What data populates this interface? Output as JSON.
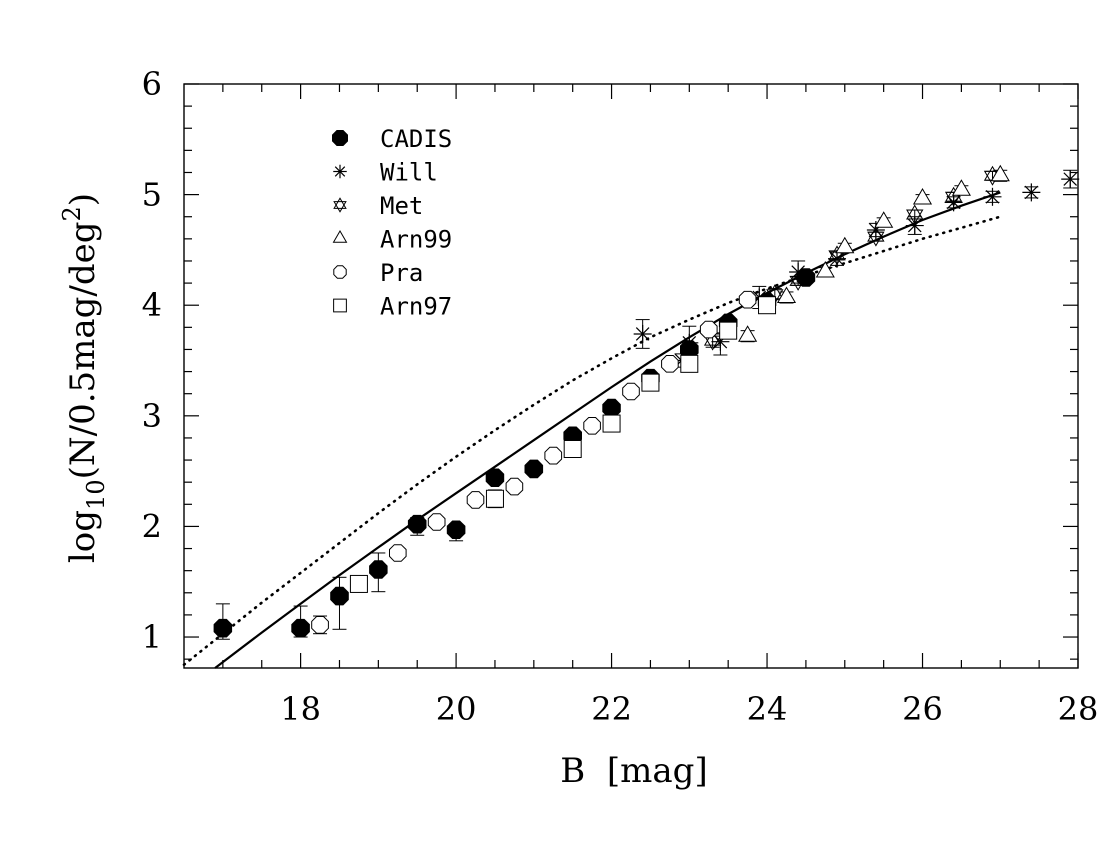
{
  "chart_data": {
    "type": "scatter",
    "xlabel": "B  [mag]",
    "ylabel_main": "log",
    "ylabel_sub": "10",
    "ylabel_rest": "(N/0.5mag/deg",
    "ylabel_sup": "2",
    "ylabel_end": ")",
    "xlim": [
      16.5,
      28
    ],
    "ylim": [
      0.72,
      6
    ],
    "xticks": [
      18,
      20,
      22,
      24,
      26,
      28
    ],
    "xtick_labels": [
      "18",
      "20",
      "22",
      "24",
      "26",
      "28"
    ],
    "yticks": [
      1,
      2,
      3,
      4,
      5,
      6
    ],
    "ytick_labels": [
      "1",
      "2",
      "3",
      "4",
      "5",
      "6"
    ],
    "legend_position": "top-left",
    "series": [
      {
        "name": "CADIS",
        "marker": "filled-octagon",
        "points": [
          [
            17.0,
            1.08,
            0.22,
            0.1
          ],
          [
            18.0,
            1.08,
            0.2,
            0.08
          ],
          [
            18.5,
            1.37,
            0.17,
            0.3
          ],
          [
            19.0,
            1.61,
            0.15,
            0.2
          ],
          [
            19.5,
            2.02,
            0.06,
            0.1
          ],
          [
            20.0,
            1.97,
            0.05,
            0.1
          ],
          [
            20.5,
            2.44,
            0.05,
            0.05
          ],
          [
            21.0,
            2.52,
            0.04,
            0.04
          ],
          [
            21.5,
            2.82,
            0.04,
            0.04
          ],
          [
            22.0,
            3.07,
            0.03,
            0.03
          ],
          [
            22.5,
            3.34,
            0.03,
            0.03
          ],
          [
            23.0,
            3.6,
            0.03,
            0.03
          ],
          [
            23.5,
            3.84,
            0.03,
            0.03
          ],
          [
            24.0,
            4.03,
            0.03,
            0.03
          ],
          [
            24.5,
            4.25,
            0.03,
            0.03
          ]
        ]
      },
      {
        "name": "Will",
        "marker": "asterisk",
        "points": [
          [
            22.4,
            3.74,
            0.13,
            0.13
          ],
          [
            22.9,
            3.5,
            0.06,
            0.06
          ],
          [
            23.0,
            3.66,
            0.15,
            0.1
          ],
          [
            23.4,
            3.67,
            0.08,
            0.12
          ],
          [
            23.9,
            4.07,
            0.1,
            0.1
          ],
          [
            24.4,
            4.3,
            0.1,
            0.1
          ],
          [
            24.9,
            4.42,
            0.06,
            0.06
          ],
          [
            25.4,
            4.68,
            0.06,
            0.06
          ],
          [
            25.9,
            4.72,
            0.08,
            0.08
          ],
          [
            26.4,
            4.93,
            0.05,
            0.05
          ],
          [
            26.9,
            4.98,
            0.05,
            0.05
          ],
          [
            27.4,
            5.02,
            0.05,
            0.05
          ],
          [
            27.9,
            5.14,
            0.08,
            0.08
          ]
        ]
      },
      {
        "name": "Met",
        "marker": "star-of-david",
        "points": [
          [
            23.3,
            3.68,
            0.06,
            0.06
          ],
          [
            24.1,
            4.1,
            0.05,
            0.05
          ],
          [
            24.4,
            4.22,
            0.04,
            0.04
          ],
          [
            24.9,
            4.45,
            0.04,
            0.04
          ],
          [
            25.4,
            4.62,
            0.04,
            0.04
          ],
          [
            25.9,
            4.82,
            0.04,
            0.04
          ],
          [
            26.4,
            4.98,
            0.04,
            0.04
          ],
          [
            26.9,
            5.17,
            0.04,
            0.04
          ]
        ]
      },
      {
        "name": "Arn99",
        "marker": "triangle",
        "points": [
          [
            23.75,
            3.72,
            0.05,
            0.05
          ],
          [
            24.25,
            4.07,
            0.05,
            0.05
          ],
          [
            24.75,
            4.3,
            0.04,
            0.04
          ],
          [
            25.0,
            4.52,
            0.04,
            0.04
          ],
          [
            25.5,
            4.75,
            0.04,
            0.04
          ],
          [
            26.0,
            4.96,
            0.04,
            0.04
          ],
          [
            26.5,
            5.04,
            0.04,
            0.04
          ],
          [
            27.0,
            5.17,
            0.05,
            0.05
          ]
        ]
      },
      {
        "name": "Pra",
        "marker": "open-octagon",
        "points": [
          [
            18.25,
            1.11,
            0.08,
            0.08
          ],
          [
            19.25,
            1.76,
            0.04,
            0.04
          ],
          [
            19.75,
            2.04,
            0.03,
            0.03
          ],
          [
            20.25,
            2.24,
            0.03,
            0.03
          ],
          [
            20.75,
            2.36,
            0.03,
            0.03
          ],
          [
            21.25,
            2.64,
            0.03,
            0.03
          ],
          [
            21.75,
            2.91,
            0.03,
            0.03
          ],
          [
            22.25,
            3.22,
            0.03,
            0.03
          ],
          [
            22.75,
            3.47,
            0.03,
            0.03
          ],
          [
            23.25,
            3.78,
            0.03,
            0.03
          ],
          [
            23.75,
            4.05,
            0.03,
            0.03
          ]
        ]
      },
      {
        "name": "Arn97",
        "marker": "square",
        "points": [
          [
            18.75,
            1.48,
            0.07,
            0.07
          ],
          [
            20.5,
            2.25,
            0.08,
            0.08
          ],
          [
            21.5,
            2.7,
            0.05,
            0.05
          ],
          [
            22.0,
            2.93,
            0.05,
            0.05
          ],
          [
            22.5,
            3.3,
            0.04,
            0.04
          ],
          [
            23.0,
            3.47,
            0.05,
            0.05
          ],
          [
            23.5,
            3.77,
            0.04,
            0.04
          ],
          [
            24.0,
            4.0,
            0.06,
            0.06
          ]
        ]
      }
    ],
    "curves": [
      {
        "style": "solid",
        "x": [
          16.9,
          17.5,
          18.0,
          18.5,
          19.0,
          19.5,
          20.0,
          20.5,
          21.0,
          21.5,
          22.0,
          22.5,
          23.0,
          23.5,
          24.0,
          24.5,
          25.0,
          25.5,
          26.0,
          26.5,
          27.0
        ],
        "y": [
          0.72,
          1.04,
          1.3,
          1.56,
          1.81,
          2.06,
          2.3,
          2.54,
          2.78,
          3.02,
          3.26,
          3.49,
          3.71,
          3.92,
          4.11,
          4.29,
          4.46,
          4.62,
          4.77,
          4.9,
          5.02
        ]
      },
      {
        "style": "dotted",
        "x": [
          16.5,
          17.0,
          17.5,
          18.0,
          18.5,
          19.0,
          19.5,
          20.0,
          20.5,
          21.0,
          21.5,
          22.0,
          22.5,
          23.0,
          23.5,
          24.0,
          24.5,
          25.0,
          25.5,
          26.0,
          26.5,
          27.0
        ],
        "y": [
          0.75,
          1.03,
          1.31,
          1.58,
          1.85,
          2.12,
          2.38,
          2.63,
          2.87,
          3.1,
          3.32,
          3.52,
          3.71,
          3.87,
          4.02,
          4.15,
          4.27,
          4.38,
          4.49,
          4.6,
          4.7,
          4.8
        ]
      }
    ]
  }
}
